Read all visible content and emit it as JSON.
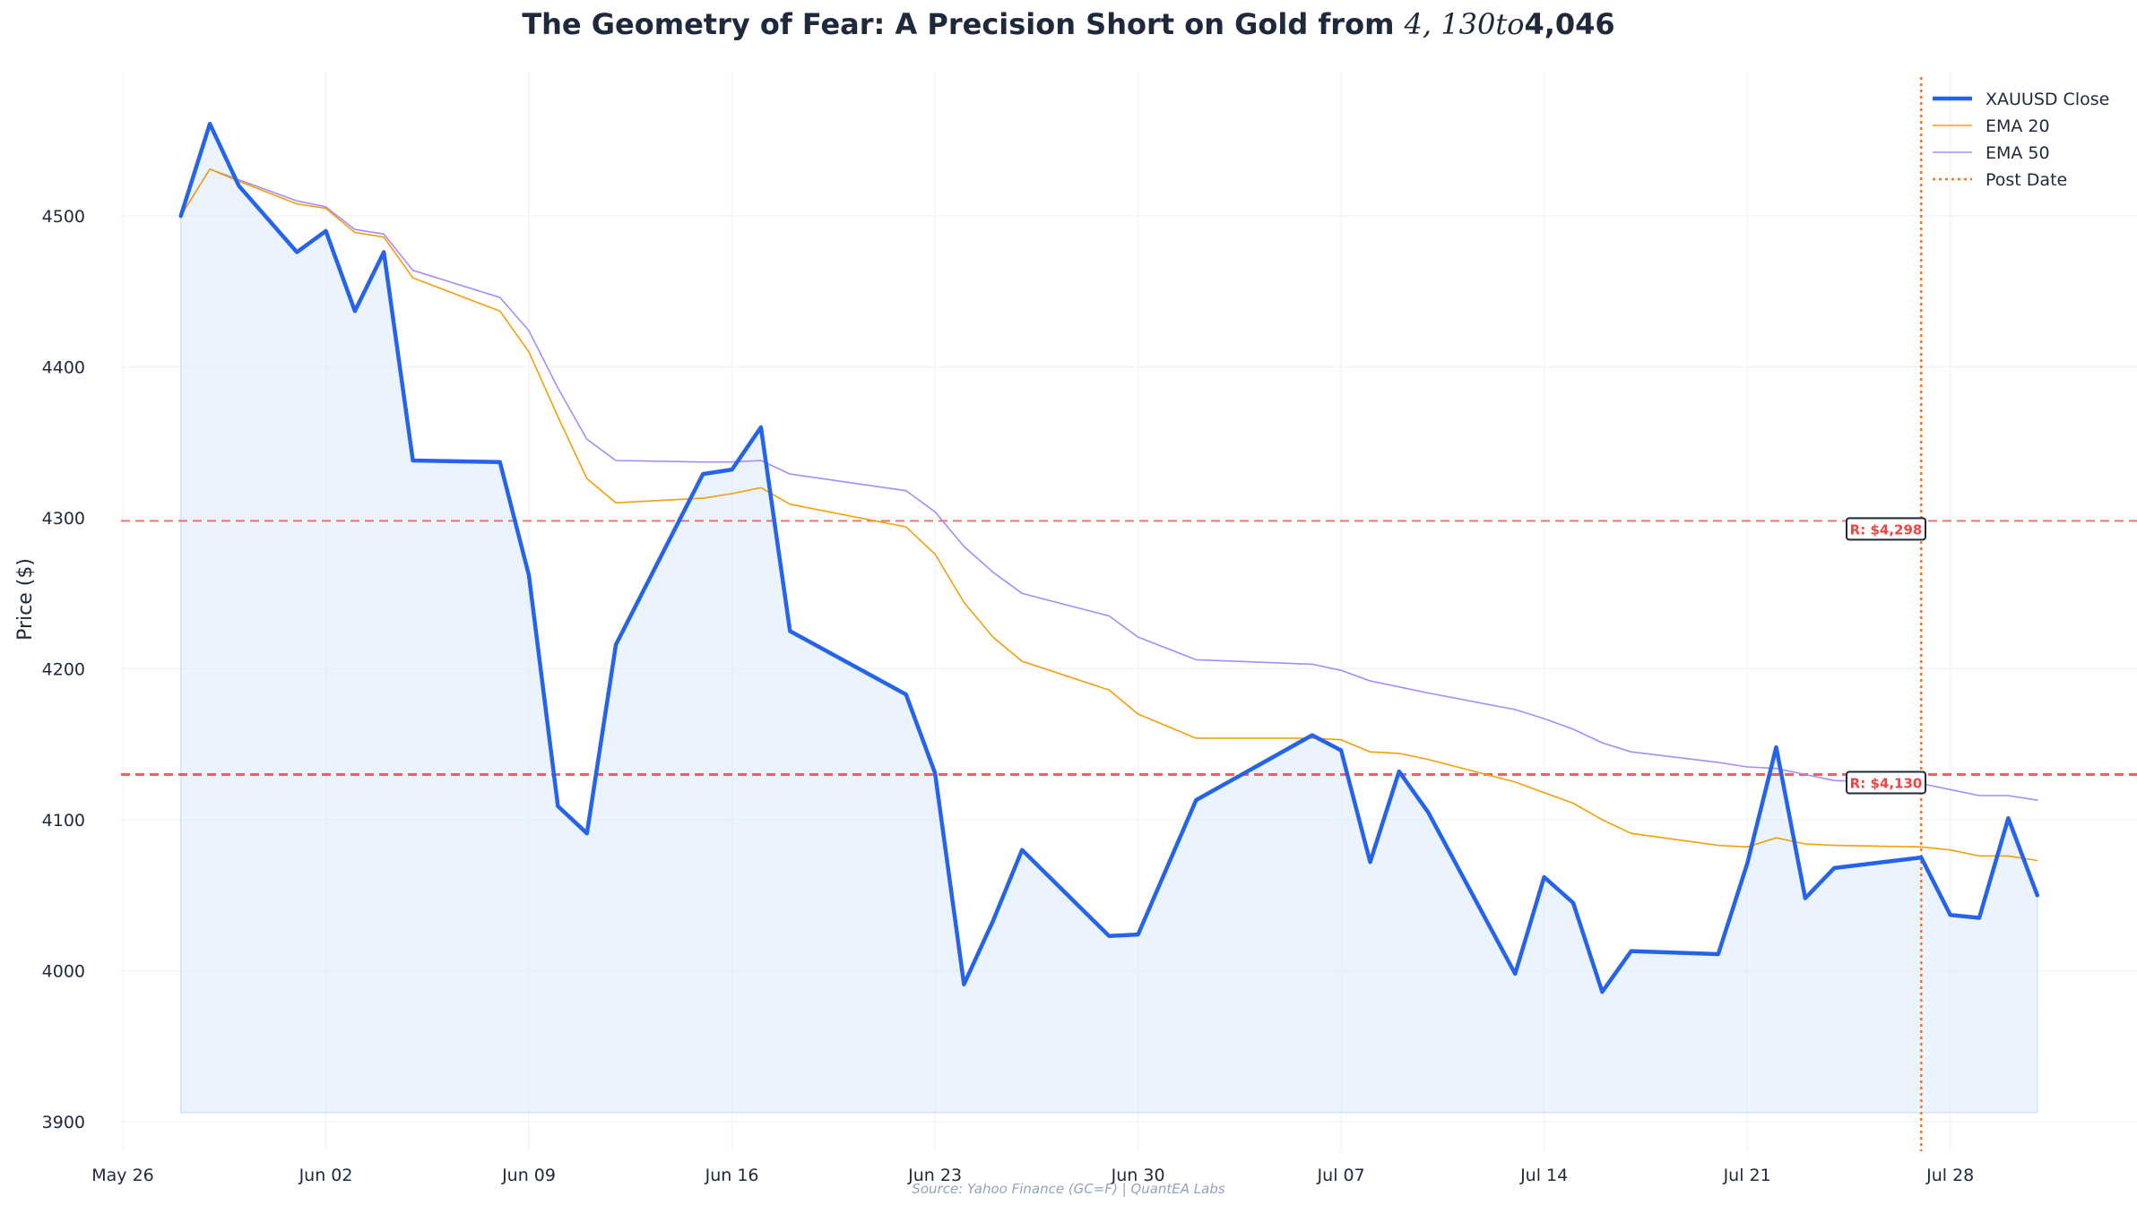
{
  "title_parts": {
    "pre": "The Geometry of Fear: A Precision Short on Gold from ",
    "math": "4, 130to",
    "post": "4,046"
  },
  "source": "Source: Yahoo Finance (GC=F) | QuantEA Labs",
  "colors": {
    "close": "#2563eb",
    "ema20": "#f59e0b",
    "ema50": "#a78bfa",
    "post_date": "#f97316",
    "resistance": "#ef4444",
    "fill": "#dbeafe",
    "grid": "#f1f5f9",
    "text": "#1e293b"
  },
  "chart_data": {
    "type": "line",
    "ylabel": "Price ($)",
    "xlabel": "",
    "ylim": [
      3900,
      4560
    ],
    "xlim": [
      "2025-05-26",
      "2025-08-03"
    ],
    "x_ticks": [
      "May 26",
      "Jun 02",
      "Jun 09",
      "Jun 16",
      "Jun 23",
      "Jun 30",
      "Jul 07",
      "Jul 14",
      "Jul 21",
      "Jul 28"
    ],
    "x_tick_dates": [
      "2025-05-26",
      "2025-06-02",
      "2025-06-09",
      "2025-06-16",
      "2025-06-23",
      "2025-06-30",
      "2025-07-07",
      "2025-07-14",
      "2025-07-21",
      "2025-07-28"
    ],
    "y_ticks": [
      3900,
      4000,
      4100,
      4200,
      4300,
      4400,
      4500
    ],
    "grid": true,
    "legend_position": "top-right",
    "x": [
      "2025-05-28",
      "2025-05-29",
      "2025-05-30",
      "2025-06-01",
      "2025-06-02",
      "2025-06-03",
      "2025-06-04",
      "2025-06-05",
      "2025-06-08",
      "2025-06-09",
      "2025-06-10",
      "2025-06-11",
      "2025-06-12",
      "2025-06-15",
      "2025-06-16",
      "2025-06-17",
      "2025-06-18",
      "2025-06-22",
      "2025-06-23",
      "2025-06-24",
      "2025-06-25",
      "2025-06-26",
      "2025-06-29",
      "2025-06-30",
      "2025-07-02",
      "2025-07-06",
      "2025-07-07",
      "2025-07-08",
      "2025-07-09",
      "2025-07-10",
      "2025-07-13",
      "2025-07-14",
      "2025-07-15",
      "2025-07-16",
      "2025-07-17",
      "2025-07-20",
      "2025-07-21",
      "2025-07-22",
      "2025-07-23",
      "2025-07-24",
      "2025-07-27",
      "2025-07-28",
      "2025-07-29",
      "2025-07-30",
      "2025-07-31"
    ],
    "series": [
      {
        "name": "XAUUSD Close",
        "values": [
          4500,
          4561,
          4520,
          4476,
          4490,
          4437,
          4476,
          4338,
          4337,
          4262,
          4109,
          4091,
          4216,
          4329,
          4332,
          4360,
          4225,
          4183,
          4131,
          3991,
          4033,
          4080,
          4023,
          4024,
          4113,
          4156,
          4146,
          4072,
          4132,
          4105,
          3998,
          4062,
          4045,
          3986,
          4013,
          4011,
          4071,
          4148,
          4048,
          4068,
          4075,
          4037,
          4035,
          4101,
          4050
        ]
      },
      {
        "name": "EMA 20",
        "values": [
          4500,
          4531,
          4523,
          4508,
          4505,
          4489,
          4486,
          4459,
          4437,
          4410,
          4367,
          4326,
          4310,
          4313,
          4316,
          4320,
          4309,
          4294,
          4276,
          4244,
          4221,
          4205,
          4186,
          4170,
          4154,
          4154,
          4153,
          4145,
          4144,
          4140,
          4125,
          4118,
          4111,
          4100,
          4091,
          4083,
          4082,
          4088,
          4084,
          4083,
          4082,
          4080,
          4076,
          4076,
          4073
        ]
      },
      {
        "name": "EMA 50",
        "values": [
          4500,
          4531,
          4524,
          4510,
          4506,
          4491,
          4488,
          4464,
          4446,
          4424,
          4386,
          4352,
          4338,
          4337,
          4337,
          4338,
          4329,
          4318,
          4304,
          4281,
          4264,
          4250,
          4235,
          4221,
          4206,
          4203,
          4199,
          4192,
          4188,
          4184,
          4173,
          4167,
          4160,
          4151,
          4145,
          4138,
          4135,
          4134,
          4130,
          4126,
          4124,
          4120,
          4116,
          4116,
          4113
        ]
      }
    ],
    "post_date": {
      "name": "Post Date",
      "x": "2025-07-27"
    },
    "resistance_lines": [
      {
        "value": 4298,
        "label": "R: $4,298"
      },
      {
        "value": 4130,
        "label": "R: $4,130"
      }
    ],
    "fill_baseline": 3906
  }
}
